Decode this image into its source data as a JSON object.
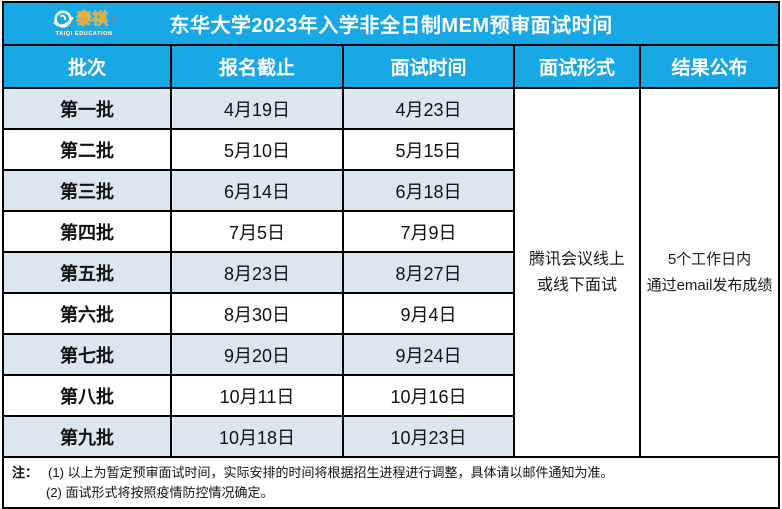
{
  "title": "东华大学2023年入学非全日制MEM预审面试时间",
  "logo": {
    "name": "泰祺",
    "registered_mark": "®",
    "subtext": "TAIQI EDUCATION"
  },
  "table": {
    "headers": [
      "批次",
      "报名截止",
      "面试时间",
      "面试形式",
      "结果公布"
    ],
    "rows": [
      {
        "batch": "第一批",
        "deadline": "4月19日",
        "interview": "4月23日"
      },
      {
        "batch": "第二批",
        "deadline": "5月10日",
        "interview": "5月15日"
      },
      {
        "batch": "第三批",
        "deadline": "6月14日",
        "interview": "6月18日"
      },
      {
        "batch": "第四批",
        "deadline": "7月5日",
        "interview": "7月9日"
      },
      {
        "batch": "第五批",
        "deadline": "8月23日",
        "interview": "8月27日"
      },
      {
        "batch": "第六批",
        "deadline": "8月30日",
        "interview": "9月4日"
      },
      {
        "batch": "第七批",
        "deadline": "9月20日",
        "interview": "9月24日"
      },
      {
        "batch": "第八批",
        "deadline": "10月11日",
        "interview": "10月16日"
      },
      {
        "batch": "第九批",
        "deadline": "10月18日",
        "interview": "10月23日"
      }
    ],
    "interview_format": {
      "line1": "腾讯会议线上",
      "line2": "或线下面试"
    },
    "result_publish": {
      "line1": "5个工作日内",
      "line2": "通过email发布成绩"
    }
  },
  "notes": {
    "label": "注：",
    "items": [
      "(1) 以上为暂定预审面试时间，实际安排的时间将根据招生进程进行调整，具体请以邮件通知为准。",
      "(2) 面试形式将按照疫情防控情况确定。"
    ]
  },
  "colors": {
    "header_blue": "#18A8E6",
    "row_alt_blue": "#DCE6F1",
    "border_black": "#000000",
    "logo_orange": "#F9A51A",
    "cell_white": "#FFFFFF"
  }
}
